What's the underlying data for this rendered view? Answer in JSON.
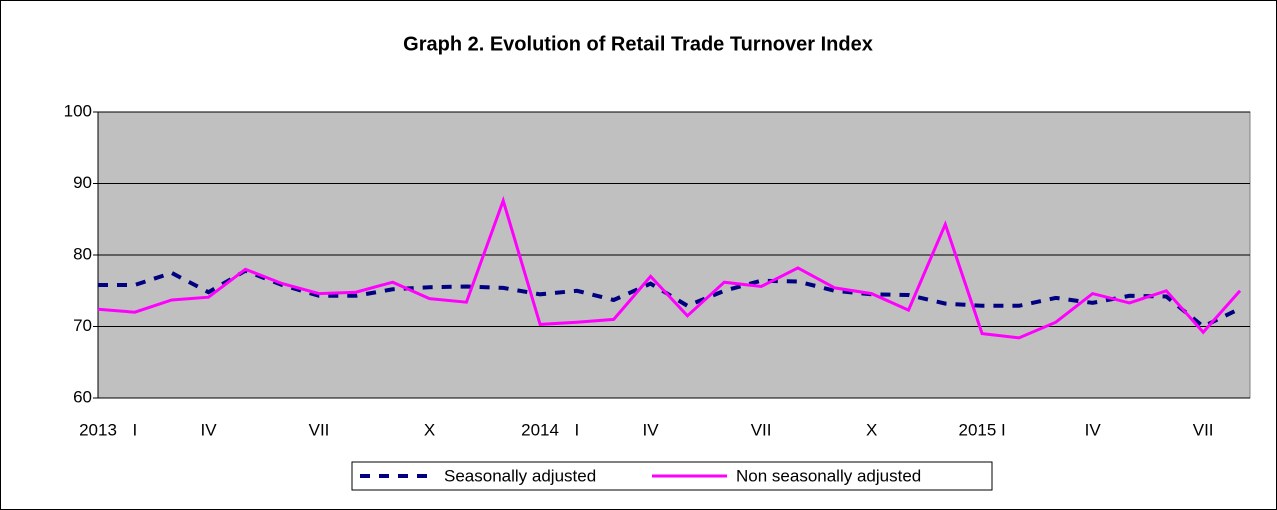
{
  "chart_data": {
    "type": "line",
    "title": "Graph 2. Evolution of Retail Trade Turnover Index",
    "categories": [
      "2013",
      "I",
      null,
      "IV",
      null,
      null,
      "VII",
      null,
      null,
      "X",
      null,
      null,
      "2014",
      "I",
      null,
      "IV",
      null,
      null,
      "VII",
      null,
      null,
      "X",
      null,
      null,
      "2015 I",
      null,
      null,
      "IV",
      null,
      null,
      "VII",
      null
    ],
    "series": [
      {
        "name": "Seasonally adjusted",
        "color": "#000080",
        "dash": true,
        "values": [
          75.8,
          75.8,
          77.5,
          74.8,
          77.8,
          75.8,
          74.3,
          74.3,
          75.2,
          75.5,
          75.6,
          75.4,
          74.5,
          75.0,
          73.7,
          76.0,
          72.9,
          75.0,
          76.4,
          76.3,
          75.0,
          74.5,
          74.4,
          73.2,
          72.9,
          72.9,
          74.0,
          73.3,
          74.3,
          74.2,
          70.0,
          72.5
        ]
      },
      {
        "name": "Non seasonally adjusted",
        "color": "#ff00ff",
        "dash": false,
        "values": [
          72.4,
          72.0,
          73.7,
          74.1,
          78.0,
          76.0,
          74.6,
          74.8,
          76.2,
          73.9,
          73.4,
          87.6,
          70.3,
          70.6,
          71.0,
          77.0,
          71.5,
          76.2,
          75.6,
          78.2,
          75.4,
          74.6,
          72.3,
          84.3,
          69.0,
          68.4,
          70.6,
          74.6,
          73.3,
          75.0,
          69.2,
          75.0
        ]
      }
    ],
    "ylim": [
      60,
      100
    ],
    "yticks": [
      60,
      70,
      80,
      90,
      100
    ],
    "grid": true,
    "legend": "bottom"
  }
}
